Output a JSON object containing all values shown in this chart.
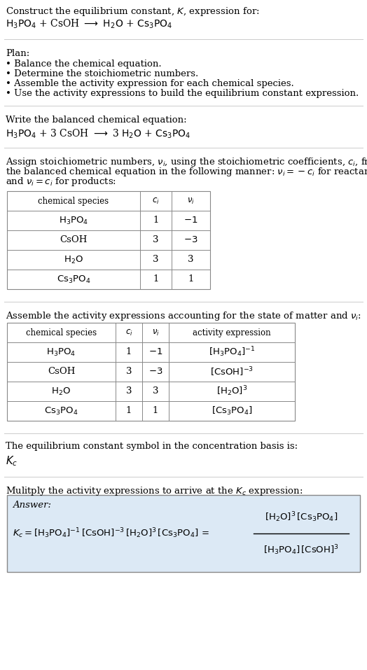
{
  "bg_color": "#ffffff",
  "text_color": "#000000",
  "title_line1": "Construct the equilibrium constant, $K$, expression for:",
  "title_line2": "$\\mathrm{H_3PO_4}$ + CsOH $\\longrightarrow$ $\\mathrm{H_2O}$ + $\\mathrm{Cs_3PO_4}$",
  "plan_header": "Plan:",
  "plan_bullets": [
    "Balance the chemical equation.",
    "Determine the stoichiometric numbers.",
    "Assemble the activity expression for each chemical species.",
    "Use the activity expressions to build the equilibrium constant expression."
  ],
  "balanced_header": "Write the balanced chemical equation:",
  "balanced_eq": "$\\mathrm{H_3PO_4}$ + 3 CsOH $\\longrightarrow$ 3 $\\mathrm{H_2O}$ + $\\mathrm{Cs_3PO_4}$",
  "stoich_intro_parts": [
    "Assign stoichiometric numbers, $\\nu_i$, using the stoichiometric coefficients, $c_i$, from",
    "the balanced chemical equation in the following manner: $\\nu_i = -c_i$ for reactants",
    "and $\\nu_i = c_i$ for products:"
  ],
  "table1_headers": [
    "chemical species",
    "$c_i$",
    "$\\nu_i$"
  ],
  "table1_rows": [
    [
      "$\\mathrm{H_3PO_4}$",
      "1",
      "$-1$"
    ],
    [
      "CsOH",
      "3",
      "$-3$"
    ],
    [
      "$\\mathrm{H_2O}$",
      "3",
      "3"
    ],
    [
      "$\\mathrm{Cs_3PO_4}$",
      "1",
      "1"
    ]
  ],
  "activity_intro": "Assemble the activity expressions accounting for the state of matter and $\\nu_i$:",
  "table2_headers": [
    "chemical species",
    "$c_i$",
    "$\\nu_i$",
    "activity expression"
  ],
  "table2_rows": [
    [
      "$\\mathrm{H_3PO_4}$",
      "1",
      "$-1$",
      "$[\\mathrm{H_3PO_4}]^{-1}$"
    ],
    [
      "CsOH",
      "3",
      "$-3$",
      "$[\\mathrm{CsOH}]^{-3}$"
    ],
    [
      "$\\mathrm{H_2O}$",
      "3",
      "3",
      "$[\\mathrm{H_2O}]^3$"
    ],
    [
      "$\\mathrm{Cs_3PO_4}$",
      "1",
      "1",
      "$[\\mathrm{Cs_3PO_4}]$"
    ]
  ],
  "kc_header": "The equilibrium constant symbol in the concentration basis is:",
  "kc_symbol": "$K_c$",
  "multiply_header": "Mulitply the activity expressions to arrive at the $K_c$ expression:",
  "answer_label": "Answer:",
  "answer_box_color": "#dce9f5",
  "answer_line1": "$K_c = [\\mathrm{H_3PO_4}]^{-1}\\,[\\mathrm{CsOH}]^{-3}\\,[\\mathrm{H_2O}]^3\\,[\\mathrm{Cs_3PO_4}]\\, =$",
  "answer_eq_rhs_num": "$[\\mathrm{H_2O}]^3\\,[\\mathrm{Cs_3PO_4}]$",
  "answer_eq_rhs_den": "$[\\mathrm{H_3PO_4}]\\,[\\mathrm{CsOH}]^3$",
  "sep_color": "#cccccc",
  "table_color": "#888888",
  "font_size": 9.5,
  "small_font": 8.5
}
